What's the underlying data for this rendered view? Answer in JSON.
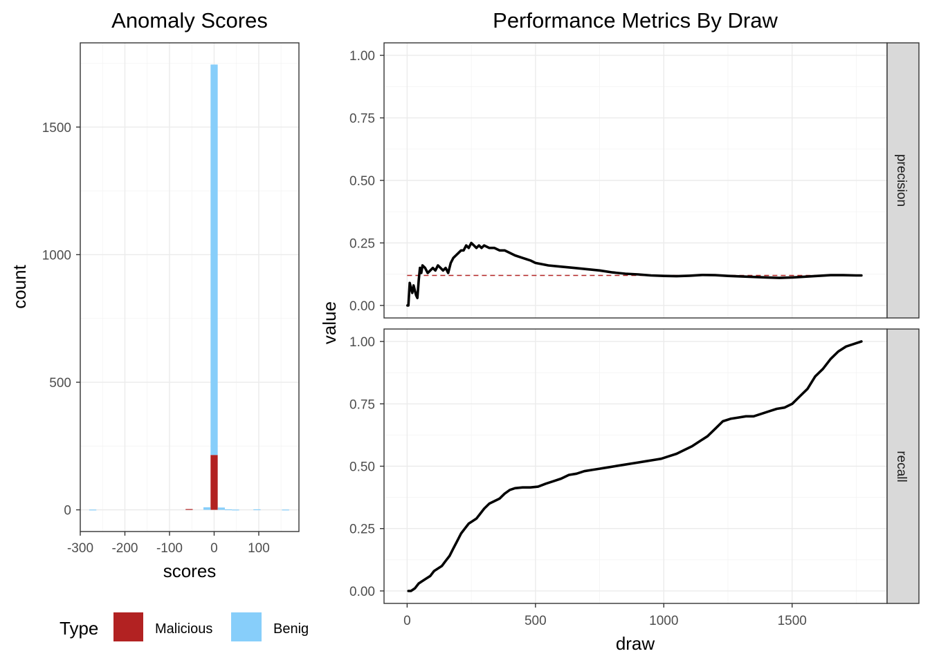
{
  "chart_data": [
    {
      "type": "bar",
      "title": "Anomaly Scores",
      "xlabel": "scores",
      "ylabel": "count",
      "xlim": [
        -300,
        190
      ],
      "ylim": [
        -85,
        1830
      ],
      "x_ticks": [
        -300,
        -200,
        -100,
        0,
        100
      ],
      "x_tick_labels": [
        "-300",
        "-200",
        "-100",
        "0",
        "100"
      ],
      "y_ticks": [
        0,
        500,
        1000,
        1500
      ],
      "y_tick_labels": [
        "0",
        "500",
        "1000",
        "1500"
      ],
      "bin_width": 16,
      "stacked": true,
      "grid": true,
      "legend": {
        "title": "Type",
        "position": "bottom",
        "entries": [
          {
            "label": "Malicious",
            "color": "#b22222"
          },
          {
            "label": "Benign",
            "color": "#87cefa"
          }
        ]
      },
      "series": [
        {
          "name": "Malicious",
          "color": "#b22222",
          "bins": [
            {
              "x": -56,
              "value": 3
            },
            {
              "x": 0,
              "value": 215
            }
          ]
        },
        {
          "name": "Benign",
          "color": "#87cefa",
          "bins": [
            {
              "x": -272,
              "value": 1
            },
            {
              "x": -16,
              "value": 10
            },
            {
              "x": 0,
              "value": 1530
            },
            {
              "x": 16,
              "value": 9
            },
            {
              "x": 32,
              "value": 2
            },
            {
              "x": 48,
              "value": 1
            },
            {
              "x": 96,
              "value": 2
            },
            {
              "x": 160,
              "value": 1
            }
          ]
        }
      ]
    },
    {
      "type": "line",
      "title": "Performance Metrics By Draw",
      "xlabel": "draw",
      "ylabel": "value",
      "xlim": [
        -90,
        1870
      ],
      "x_ticks": [
        0,
        500,
        1000,
        1500
      ],
      "x_tick_labels": [
        "0",
        "500",
        "1000",
        "1500"
      ],
      "y_ticks": [
        0,
        0.25,
        0.5,
        0.75,
        1.0
      ],
      "y_tick_labels": [
        "0.00",
        "0.25",
        "0.50",
        "0.75",
        "1.00"
      ],
      "grid": true,
      "facets": [
        {
          "strip": "precision",
          "ylim": [
            -0.05,
            1.05
          ],
          "reference_line": {
            "y": 0.12,
            "x": [
              0,
              1770
            ],
            "color": "#b22222",
            "style": "dashed"
          },
          "series": [
            {
              "color": "#000000",
              "x": [
                1,
                5,
                10,
                15,
                20,
                25,
                30,
                35,
                40,
                45,
                50,
                55,
                60,
                70,
                80,
                90,
                100,
                110,
                120,
                130,
                140,
                150,
                160,
                170,
                180,
                190,
                200,
                210,
                220,
                230,
                240,
                250,
                260,
                270,
                280,
                290,
                300,
                320,
                340,
                360,
                380,
                400,
                420,
                450,
                480,
                500,
                550,
                600,
                650,
                700,
                750,
                800,
                850,
                900,
                950,
                1000,
                1050,
                1100,
                1150,
                1200,
                1250,
                1300,
                1350,
                1400,
                1450,
                1500,
                1550,
                1600,
                1650,
                1700,
                1750,
                1770
              ],
              "y": [
                0.0,
                0.0,
                0.09,
                0.07,
                0.05,
                0.08,
                0.06,
                0.04,
                0.03,
                0.1,
                0.15,
                0.13,
                0.16,
                0.15,
                0.13,
                0.14,
                0.15,
                0.14,
                0.16,
                0.15,
                0.14,
                0.15,
                0.13,
                0.17,
                0.19,
                0.2,
                0.21,
                0.22,
                0.22,
                0.24,
                0.23,
                0.25,
                0.24,
                0.23,
                0.24,
                0.23,
                0.24,
                0.23,
                0.23,
                0.22,
                0.22,
                0.21,
                0.2,
                0.19,
                0.18,
                0.17,
                0.16,
                0.155,
                0.15,
                0.145,
                0.14,
                0.132,
                0.127,
                0.124,
                0.12,
                0.118,
                0.117,
                0.119,
                0.122,
                0.121,
                0.118,
                0.116,
                0.114,
                0.112,
                0.11,
                0.112,
                0.115,
                0.118,
                0.121,
                0.121,
                0.12,
                0.12
              ]
            }
          ]
        },
        {
          "strip": "recall",
          "ylim": [
            -0.05,
            1.05
          ],
          "series": [
            {
              "color": "#000000",
              "x": [
                5,
                15,
                30,
                45,
                60,
                75,
                90,
                105,
                120,
                135,
                150,
                165,
                180,
                195,
                210,
                225,
                240,
                255,
                270,
                285,
                300,
                320,
                340,
                360,
                380,
                400,
                420,
                450,
                480,
                510,
                540,
                570,
                600,
                630,
                660,
                690,
                720,
                750,
                780,
                810,
                840,
                870,
                900,
                930,
                960,
                990,
                1020,
                1050,
                1080,
                1110,
                1140,
                1170,
                1200,
                1230,
                1260,
                1290,
                1320,
                1350,
                1380,
                1410,
                1440,
                1470,
                1500,
                1530,
                1560,
                1590,
                1620,
                1650,
                1680,
                1710,
                1740,
                1770
              ],
              "y": [
                0.0,
                0.0,
                0.01,
                0.03,
                0.04,
                0.05,
                0.06,
                0.08,
                0.09,
                0.1,
                0.12,
                0.14,
                0.17,
                0.2,
                0.23,
                0.25,
                0.27,
                0.28,
                0.29,
                0.31,
                0.33,
                0.35,
                0.36,
                0.37,
                0.39,
                0.405,
                0.412,
                0.415,
                0.415,
                0.418,
                0.43,
                0.44,
                0.45,
                0.465,
                0.47,
                0.48,
                0.485,
                0.49,
                0.495,
                0.5,
                0.505,
                0.51,
                0.515,
                0.52,
                0.525,
                0.53,
                0.54,
                0.55,
                0.565,
                0.58,
                0.6,
                0.62,
                0.65,
                0.68,
                0.69,
                0.695,
                0.7,
                0.7,
                0.71,
                0.72,
                0.73,
                0.735,
                0.75,
                0.78,
                0.81,
                0.86,
                0.89,
                0.93,
                0.96,
                0.98,
                0.99,
                1.0
              ]
            }
          ]
        }
      ]
    }
  ]
}
